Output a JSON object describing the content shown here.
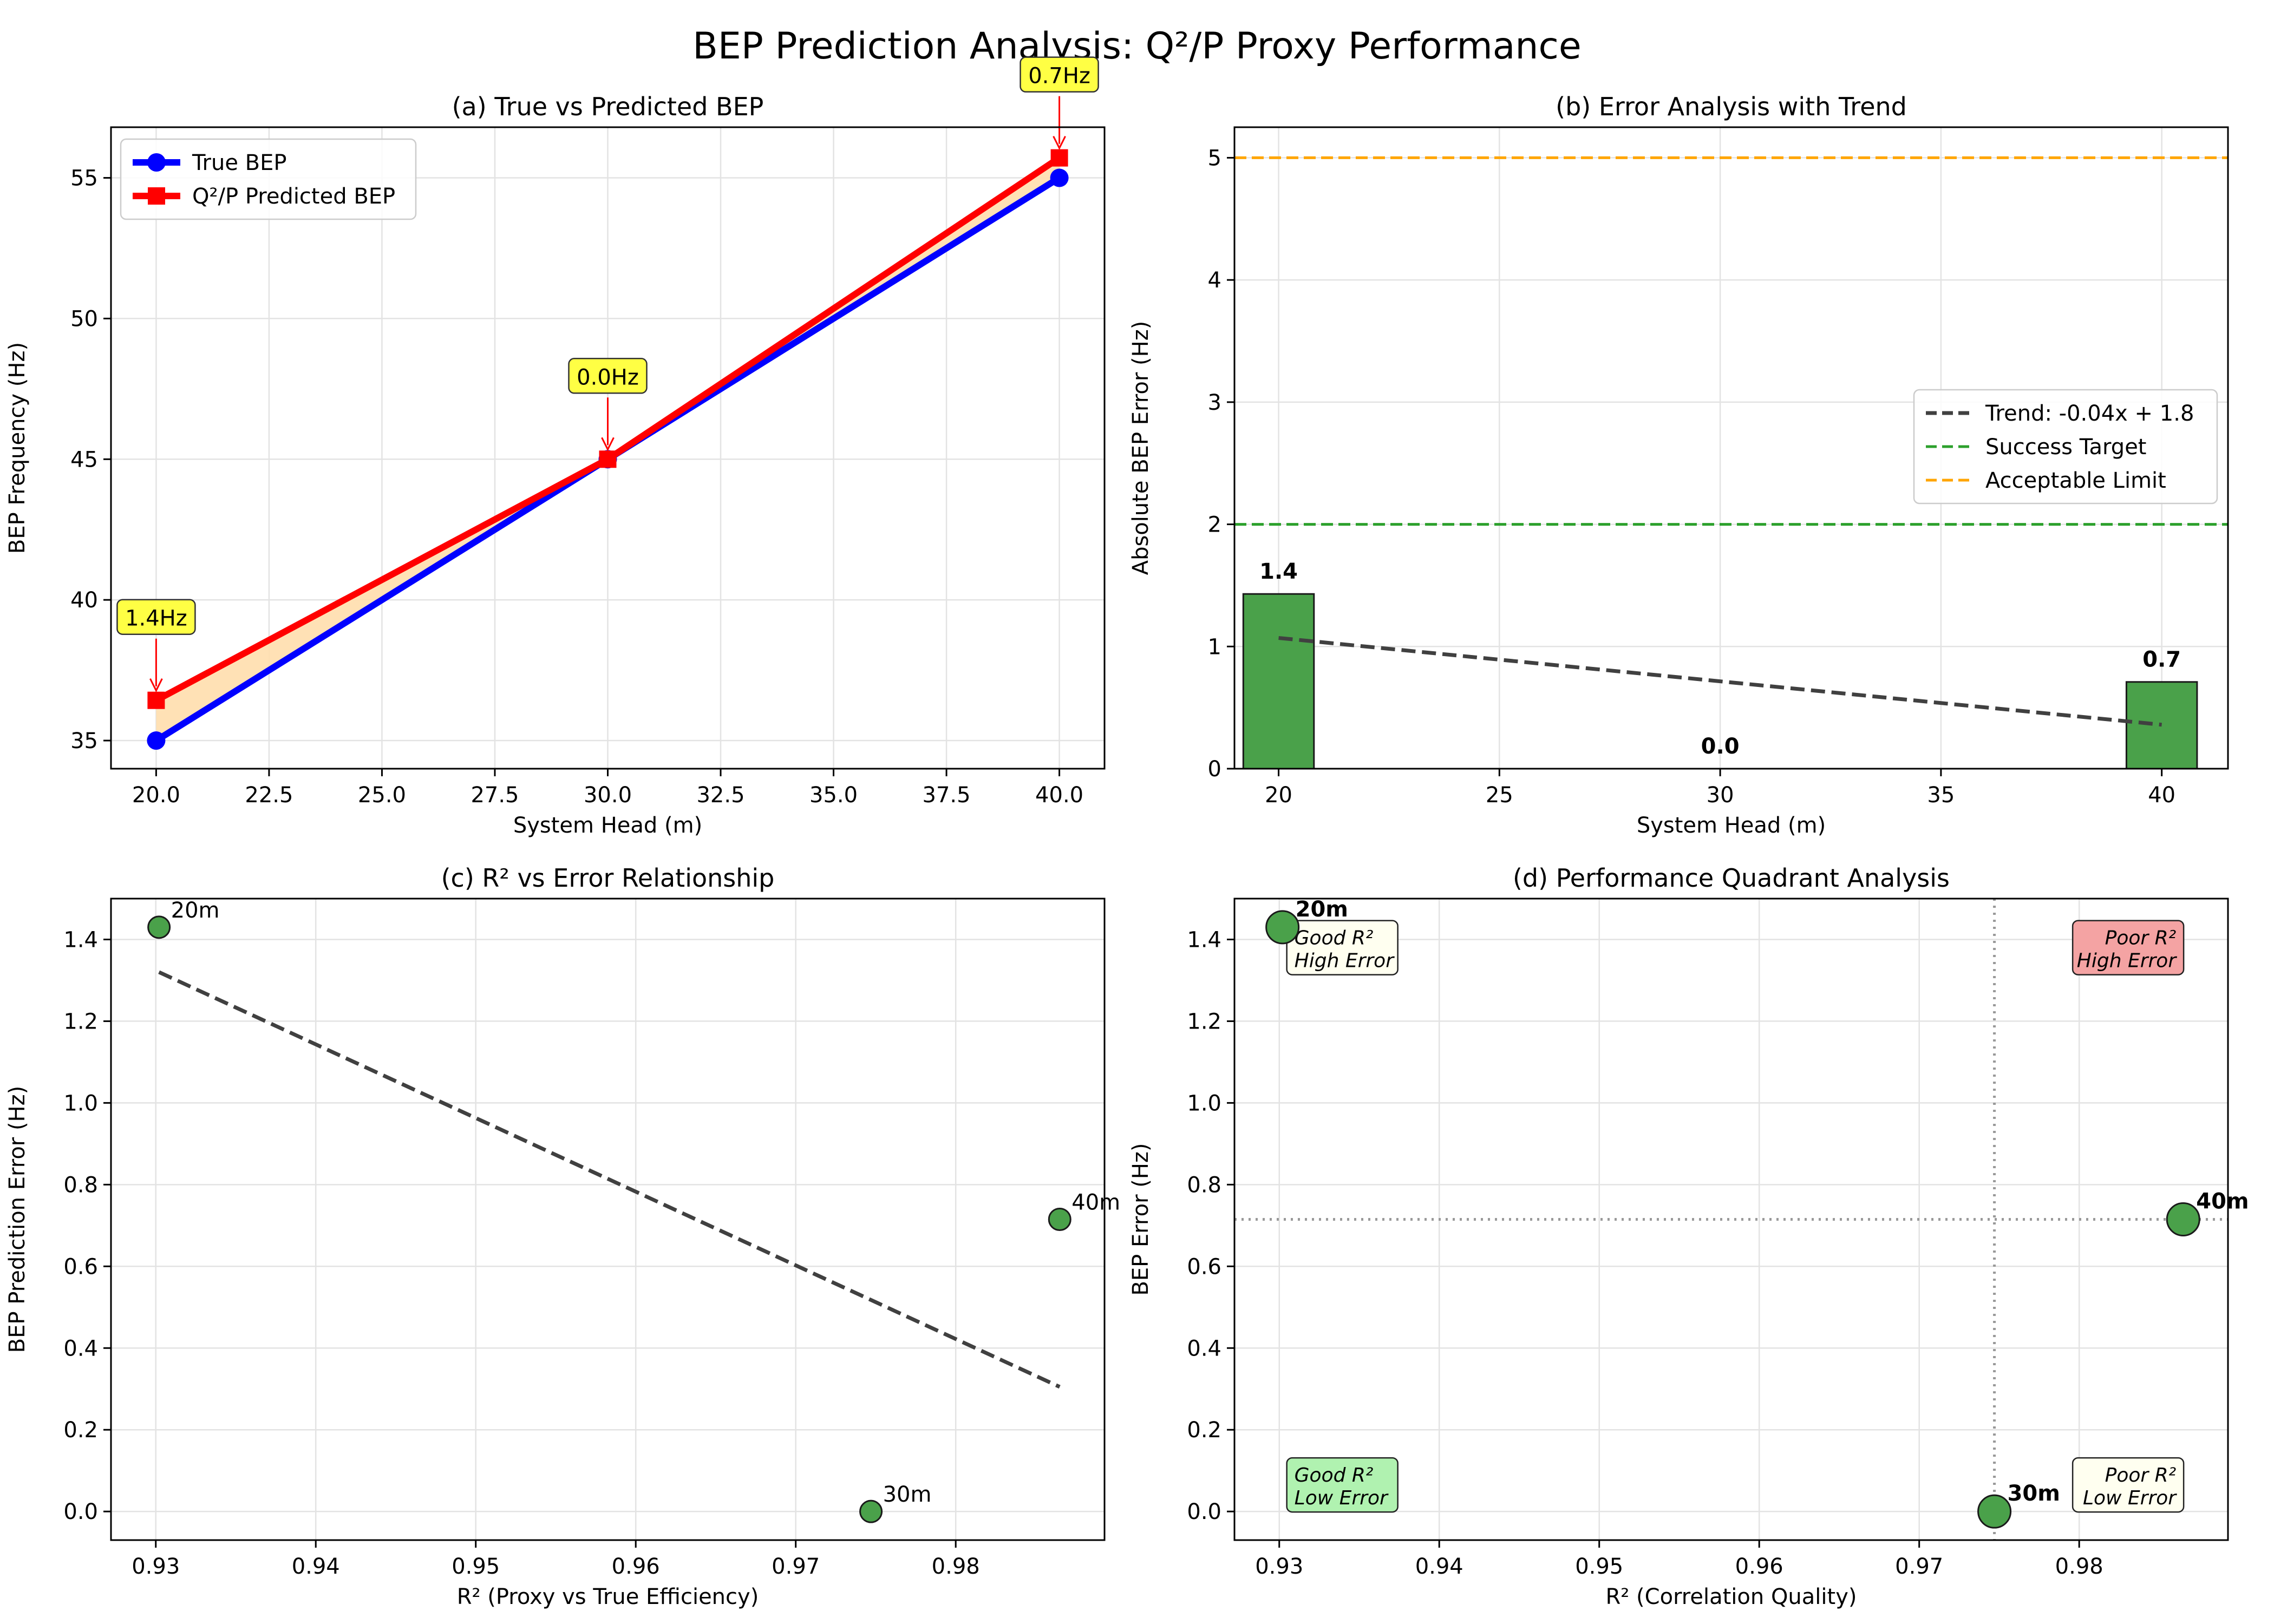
{
  "figure_title": "BEP Prediction Analysis: Q²/P Proxy Performance",
  "chart_data": [
    {
      "id": "a",
      "type": "line",
      "title": "(a) True vs Predicted BEP",
      "xlabel": "System Head (m)",
      "ylabel": "BEP Frequency (Hz)",
      "xlim": [
        19.0,
        41.0
      ],
      "ylim": [
        34.0,
        56.8
      ],
      "xticks": [
        20.0,
        22.5,
        25.0,
        27.5,
        30.0,
        32.5,
        35.0,
        37.5,
        40.0
      ],
      "xtick_labels": [
        "20.0",
        "22.5",
        "25.0",
        "27.5",
        "30.0",
        "32.5",
        "35.0",
        "37.5",
        "40.0"
      ],
      "yticks": [
        35,
        40,
        45,
        50,
        55
      ],
      "ytick_labels": [
        "35",
        "40",
        "45",
        "50",
        "55"
      ],
      "grid": true,
      "legend_position": "top-left",
      "x": [
        20,
        30,
        40
      ],
      "series": [
        {
          "name": "True BEP",
          "values": [
            35.0,
            45.0,
            55.0
          ],
          "color": "#0000ff",
          "marker": "circle"
        },
        {
          "name": "Q²/P Predicted BEP",
          "values": [
            36.43,
            45.0,
            55.71
          ],
          "color": "#ff0000",
          "marker": "square"
        }
      ],
      "fill_between_color": "#ffdead",
      "annotations": [
        {
          "text": "1.4Hz",
          "x": 20,
          "y": 36.43
        },
        {
          "text": "0.0Hz",
          "x": 30,
          "y": 45.0
        },
        {
          "text": "0.7Hz",
          "x": 40,
          "y": 55.71
        }
      ]
    },
    {
      "id": "b",
      "type": "bar",
      "title": "(b) Error Analysis with Trend",
      "xlabel": "System Head (m)",
      "ylabel": "Absolute BEP Error (Hz)",
      "xlim": [
        19.0,
        41.5
      ],
      "ylim": [
        0,
        5.25
      ],
      "xticks": [
        20,
        25,
        30,
        35,
        40
      ],
      "xtick_labels": [
        "20",
        "25",
        "30",
        "35",
        "40"
      ],
      "yticks": [
        0,
        1,
        2,
        3,
        4,
        5
      ],
      "ytick_labels": [
        "0",
        "1",
        "2",
        "3",
        "4",
        "5"
      ],
      "grid": true,
      "legend_position": "center-right",
      "categories": [
        20,
        30,
        40
      ],
      "values": [
        1.43,
        0.0,
        0.71
      ],
      "value_labels": [
        "1.4",
        "0.0",
        "0.7"
      ],
      "bar_color": "#4aa14a",
      "trend": {
        "name": "Trend: -0.04x + 1.8",
        "x": [
          20,
          40
        ],
        "y": [
          1.07,
          0.36
        ],
        "color": "#404040"
      },
      "hlines": [
        {
          "name": "Success Target",
          "y": 2.0,
          "color": "#2ca02c"
        },
        {
          "name": "Acceptable Limit",
          "y": 5.0,
          "color": "#ffa500"
        }
      ]
    },
    {
      "id": "c",
      "type": "scatter",
      "title": "(c) R² vs Error Relationship",
      "xlabel": "R² (Proxy vs True Efficiency)",
      "ylabel": "BEP Prediction Error (Hz)",
      "xlim": [
        0.9272,
        0.9893
      ],
      "ylim": [
        -0.07,
        1.5
      ],
      "xticks": [
        0.93,
        0.94,
        0.95,
        0.96,
        0.97,
        0.98
      ],
      "xtick_labels": [
        "0.93",
        "0.94",
        "0.95",
        "0.96",
        "0.97",
        "0.98"
      ],
      "yticks": [
        0.0,
        0.2,
        0.4,
        0.6,
        0.8,
        1.0,
        1.2,
        1.4
      ],
      "ytick_labels": [
        "0.0",
        "0.2",
        "0.4",
        "0.6",
        "0.8",
        "1.0",
        "1.2",
        "1.4"
      ],
      "grid": true,
      "points": [
        {
          "label": "20m",
          "x": 0.9302,
          "y": 1.43
        },
        {
          "label": "30m",
          "x": 0.9747,
          "y": 0.0
        },
        {
          "label": "40m",
          "x": 0.9865,
          "y": 0.715
        }
      ],
      "point_color": "#4aa14a",
      "trend": {
        "x": [
          0.9302,
          0.9865
        ],
        "y": [
          1.32,
          0.305
        ],
        "color": "#404040"
      }
    },
    {
      "id": "d",
      "type": "scatter",
      "title": "(d) Performance Quadrant Analysis",
      "xlabel": "R² (Correlation Quality)",
      "ylabel": "BEP Error (Hz)",
      "xlim": [
        0.9272,
        0.9893
      ],
      "ylim": [
        -0.07,
        1.5
      ],
      "xticks": [
        0.93,
        0.94,
        0.95,
        0.96,
        0.97,
        0.98
      ],
      "xtick_labels": [
        "0.93",
        "0.94",
        "0.95",
        "0.96",
        "0.97",
        "0.98"
      ],
      "yticks": [
        0.0,
        0.2,
        0.4,
        0.6,
        0.8,
        1.0,
        1.2,
        1.4
      ],
      "ytick_labels": [
        "0.0",
        "0.2",
        "0.4",
        "0.6",
        "0.8",
        "1.0",
        "1.2",
        "1.4"
      ],
      "grid": true,
      "points": [
        {
          "label": "20m",
          "x": 0.9302,
          "y": 1.43
        },
        {
          "label": "30m",
          "x": 0.9747,
          "y": 0.0
        },
        {
          "label": "40m",
          "x": 0.9865,
          "y": 0.715
        }
      ],
      "point_color": "#4aa14a",
      "median_lines": {
        "x": 0.9747,
        "y": 0.715
      },
      "quadrants": [
        {
          "line1": "Good R²",
          "line2": "High Error",
          "fill": "#fffff0",
          "x": 0.9302,
          "y": 1.38,
          "anchor": "start"
        },
        {
          "line1": "Poor R²",
          "line2": "High Error",
          "fill": "#f4a3a3",
          "x": 0.9868,
          "y": 1.38,
          "anchor": "end"
        },
        {
          "line1": "Good R²",
          "line2": "Low Error",
          "fill": "#b0f2b0",
          "x": 0.9302,
          "y": 0.065,
          "anchor": "start"
        },
        {
          "line1": "Poor R²",
          "line2": "Low Error",
          "fill": "#fffff0",
          "x": 0.9868,
          "y": 0.065,
          "anchor": "end"
        }
      ]
    }
  ]
}
